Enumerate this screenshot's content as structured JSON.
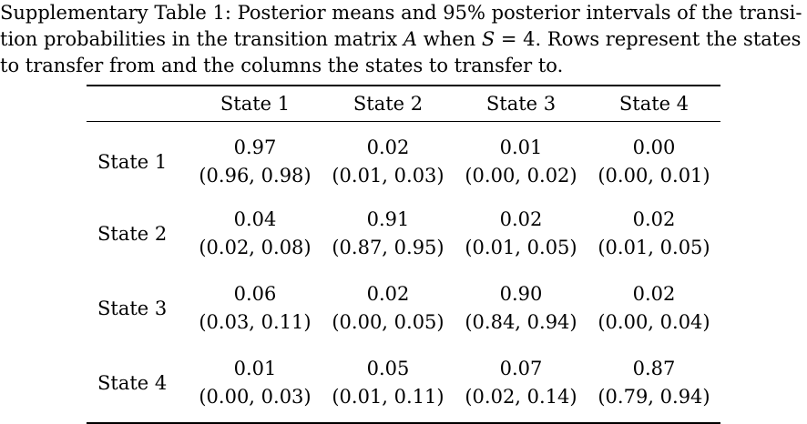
{
  "caption": {
    "line1": "Supplementary Table 1: Posterior means and 95% posterior intervals of the transi-",
    "line2_a": "tion probabilities in the transition matrix ",
    "line2_math_A": "A",
    "line2_b": " when ",
    "line2_math_S": "S",
    "line2_c": " = 4. Rows represent the states",
    "line3": "to transfer from and the columns the states to transfer to."
  },
  "table": {
    "columns": [
      "State 1",
      "State 2",
      "State 3",
      "State 4"
    ],
    "rows": [
      {
        "label": "State 1",
        "cells": [
          {
            "mean": "0.97",
            "ci": "(0.96, 0.98)"
          },
          {
            "mean": "0.02",
            "ci": "(0.01, 0.03)"
          },
          {
            "mean": "0.01",
            "ci": "(0.00, 0.02)"
          },
          {
            "mean": "0.00",
            "ci": "(0.00, 0.01)"
          }
        ]
      },
      {
        "label": "State 2",
        "cells": [
          {
            "mean": "0.04",
            "ci": "(0.02, 0.08)"
          },
          {
            "mean": "0.91",
            "ci": "(0.87, 0.95)"
          },
          {
            "mean": "0.02",
            "ci": "(0.01, 0.05)"
          },
          {
            "mean": "0.02",
            "ci": "(0.01, 0.05)"
          }
        ]
      },
      {
        "label": "State 3",
        "cells": [
          {
            "mean": "0.06",
            "ci": "(0.03, 0.11)"
          },
          {
            "mean": "0.02",
            "ci": "(0.00, 0.05)"
          },
          {
            "mean": "0.90",
            "ci": "(0.84, 0.94)"
          },
          {
            "mean": "0.02",
            "ci": "(0.00, 0.04)"
          }
        ]
      },
      {
        "label": "State 4",
        "cells": [
          {
            "mean": "0.01",
            "ci": "(0.00, 0.03)"
          },
          {
            "mean": "0.05",
            "ci": "(0.01, 0.11)"
          },
          {
            "mean": "0.07",
            "ci": "(0.02, 0.14)"
          },
          {
            "mean": "0.87",
            "ci": "(0.79, 0.94)"
          }
        ]
      }
    ]
  }
}
